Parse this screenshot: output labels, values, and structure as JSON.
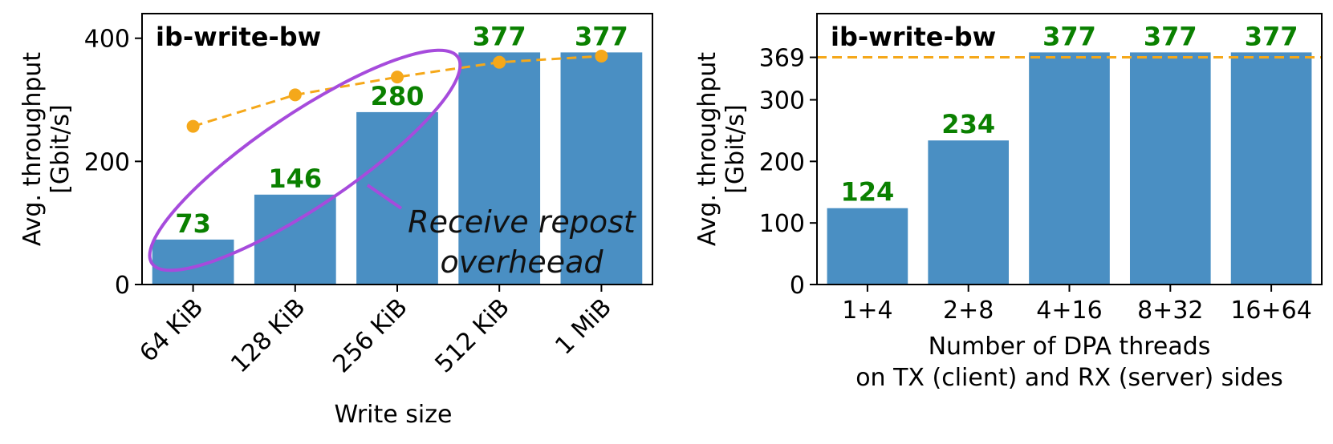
{
  "colors": {
    "bar": "#4a8fc3",
    "bar_label": "#0a8000",
    "reference": "#f5a81a",
    "annotation": "#a64bdc",
    "axis": "#000000"
  },
  "chart_data": [
    {
      "type": "bar",
      "title": "ib-write-bw",
      "xlabel": "Write size",
      "ylabel": [
        "Avg. throughput",
        "[Gbit/s]"
      ],
      "categories": [
        "64 KiB",
        "128 KiB",
        "256 KiB",
        "512 KiB",
        "1 MiB"
      ],
      "values": [
        73,
        146,
        280,
        377,
        377
      ],
      "data_labels": [
        "73",
        "146",
        "280",
        "377",
        "377"
      ],
      "ylim": [
        0,
        440
      ],
      "yticks": [
        0,
        200,
        400
      ],
      "ytick_labels": [
        "0",
        "200",
        "400"
      ],
      "grid": false,
      "overlay_series": {
        "style": "dashed line with markers",
        "values": [
          257,
          308,
          337,
          361,
          371
        ]
      },
      "annotation": {
        "text": [
          "Receive repost",
          "overheead"
        ],
        "encircles_categories": [
          "64 KiB",
          "128 KiB",
          "256 KiB"
        ]
      }
    },
    {
      "type": "bar",
      "title": "ib-write-bw",
      "xlabel": [
        "Number of DPA threads",
        "on TX (client) and RX (server) sides"
      ],
      "ylabel": [
        "Avg. throughput",
        "[Gbit/s]"
      ],
      "categories": [
        "1+4",
        "2+8",
        "4+16",
        "8+32",
        "16+64"
      ],
      "values": [
        124,
        234,
        377,
        377,
        377
      ],
      "data_labels": [
        "124",
        "234",
        "377",
        "377",
        "377"
      ],
      "ylim": [
        0,
        440
      ],
      "yticks": [
        0,
        100,
        200,
        300,
        369
      ],
      "ytick_labels": [
        "0",
        "100",
        "200",
        "300",
        "369"
      ],
      "grid": false,
      "reference_line": {
        "value": 369,
        "style": "dashed"
      }
    }
  ]
}
